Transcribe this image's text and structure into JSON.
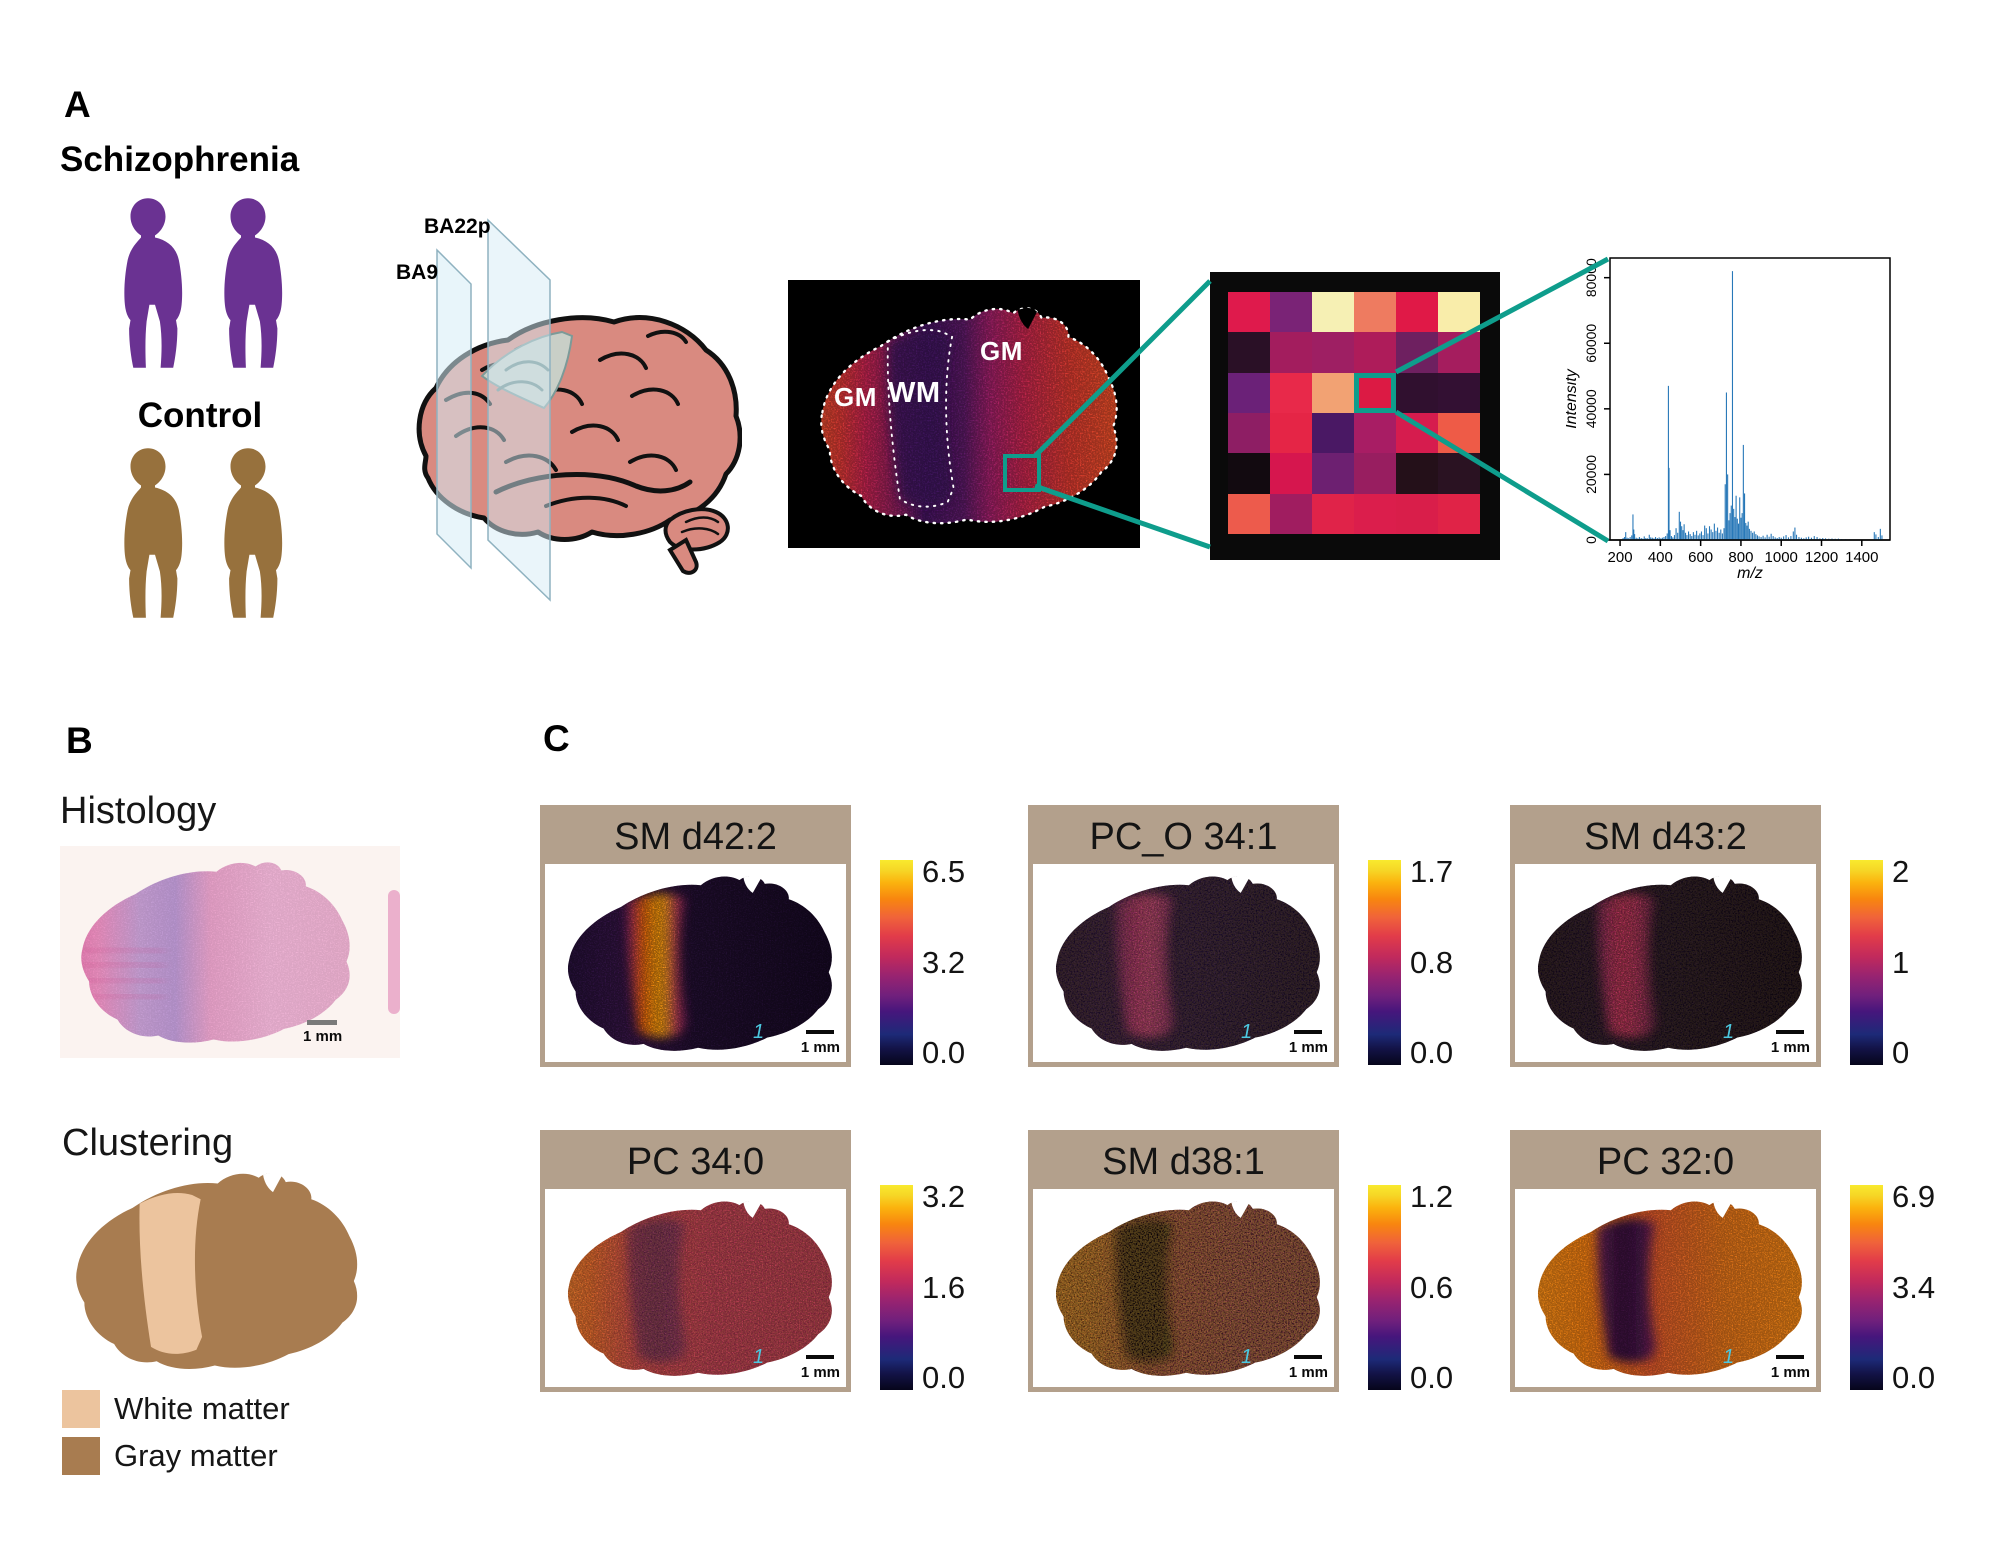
{
  "panel_a": {
    "label": "A",
    "schizophrenia_label": "Schizophrenia",
    "control_label": "Control",
    "schizophrenia_color": "#6a3292",
    "control_color": "#97713d",
    "brain": {
      "plane_far_label": "BA22p",
      "plane_near_label": "BA9",
      "brain_color": "#d98a80",
      "plane_color": "#d6ecf5",
      "cut_region_color": "#c9cfc7"
    },
    "section": {
      "gm_left_label": "GM",
      "wm_label": "WM",
      "gm_right_label": "GM",
      "bg_stops": [
        [
          "0%",
          "#e05a26"
        ],
        [
          "12%",
          "#da3a34"
        ],
        [
          "20%",
          "#c42450"
        ],
        [
          "32%",
          "#7c1e60"
        ],
        [
          "38%",
          "#451560"
        ],
        [
          "50%",
          "#5c1a66"
        ],
        [
          "58%",
          "#a02068"
        ],
        [
          "68%",
          "#c2264e"
        ],
        [
          "82%",
          "#d83a30"
        ],
        [
          "100%",
          "#e85426"
        ]
      ],
      "band_color": "#41135e"
    },
    "heatmap": {
      "rows": 6,
      "cols": 6,
      "highlight": {
        "row": 2,
        "col": 3
      },
      "cells": [
        [
          "#df1a4c",
          "#7a2376",
          "#f6f0b4",
          "#ee7b60",
          "#e01947",
          "#f9edaa"
        ],
        [
          "#2a1026",
          "#a31d5e",
          "#9e1f63",
          "#ae1c5a",
          "#6e2060",
          "#a51d5e"
        ],
        [
          "#6b2178",
          "#e8294a",
          "#f2a273",
          "#dc1a44",
          "#30102f",
          "#331033"
        ],
        [
          "#8e1e64",
          "#e52546",
          "#4a1864",
          "#a81d64",
          "#d61c4e",
          "#ee5b47"
        ],
        [
          "#120a10",
          "#d6164e",
          "#6d2071",
          "#981e60",
          "#241019",
          "#2a1222"
        ],
        [
          "#ed5b4c",
          "#a01d60",
          "#e02349",
          "#db1e4c",
          "#d91e4a",
          "#e02347"
        ]
      ]
    },
    "spectrum": {
      "chart_data": {
        "type": "line",
        "title": "",
        "xlabel": "m/z",
        "ylabel": "Intensity",
        "xlim": [
          150,
          1540
        ],
        "ylim": [
          0,
          86000
        ],
        "xticks": [
          200,
          400,
          600,
          800,
          1000,
          1200,
          1400
        ],
        "yticks": [
          0,
          20000,
          40000,
          60000,
          80000
        ],
        "line_color": "#2878b8",
        "peaks": [
          [
            215,
            600
          ],
          [
            222,
            900
          ],
          [
            228,
            2400
          ],
          [
            235,
            700
          ],
          [
            242,
            500
          ],
          [
            250,
            900
          ],
          [
            258,
            1400
          ],
          [
            264,
            7800
          ],
          [
            268,
            3200
          ],
          [
            272,
            1800
          ],
          [
            280,
            700
          ],
          [
            288,
            500
          ],
          [
            296,
            900
          ],
          [
            305,
            600
          ],
          [
            312,
            400
          ],
          [
            320,
            1100
          ],
          [
            328,
            600
          ],
          [
            336,
            500
          ],
          [
            345,
            1600
          ],
          [
            352,
            800
          ],
          [
            360,
            700
          ],
          [
            368,
            500
          ],
          [
            376,
            900
          ],
          [
            385,
            600
          ],
          [
            394,
            800
          ],
          [
            402,
            500
          ],
          [
            410,
            700
          ],
          [
            418,
            900
          ],
          [
            426,
            1200
          ],
          [
            434,
            2000
          ],
          [
            440,
            47000
          ],
          [
            443,
            22000
          ],
          [
            448,
            3000
          ],
          [
            455,
            1200
          ],
          [
            462,
            800
          ],
          [
            470,
            1500
          ],
          [
            478,
            3600
          ],
          [
            486,
            2200
          ],
          [
            494,
            8600
          ],
          [
            500,
            5600
          ],
          [
            506,
            4200
          ],
          [
            512,
            3000
          ],
          [
            518,
            4800
          ],
          [
            525,
            2200
          ],
          [
            532,
            1500
          ],
          [
            540,
            2600
          ],
          [
            548,
            1800
          ],
          [
            556,
            1200
          ],
          [
            564,
            2400
          ],
          [
            572,
            1600
          ],
          [
            580,
            2800
          ],
          [
            588,
            1400
          ],
          [
            596,
            2000
          ],
          [
            604,
            2600
          ],
          [
            612,
            1500
          ],
          [
            620,
            4400
          ],
          [
            628,
            3600
          ],
          [
            636,
            2000
          ],
          [
            644,
            4200
          ],
          [
            652,
            3200
          ],
          [
            660,
            2400
          ],
          [
            668,
            5000
          ],
          [
            676,
            2800
          ],
          [
            684,
            3800
          ],
          [
            692,
            2200
          ],
          [
            700,
            3200
          ],
          [
            708,
            2000
          ],
          [
            716,
            3600
          ],
          [
            722,
            17000
          ],
          [
            728,
            45000
          ],
          [
            734,
            20000
          ],
          [
            740,
            6000
          ],
          [
            746,
            8200
          ],
          [
            752,
            10500
          ],
          [
            758,
            82000
          ],
          [
            764,
            9500
          ],
          [
            770,
            7000
          ],
          [
            776,
            13500
          ],
          [
            782,
            6500
          ],
          [
            788,
            5000
          ],
          [
            794,
            13000
          ],
          [
            800,
            6800
          ],
          [
            806,
            8200
          ],
          [
            812,
            29000
          ],
          [
            818,
            14200
          ],
          [
            824,
            5200
          ],
          [
            830,
            4400
          ],
          [
            836,
            5600
          ],
          [
            842,
            3400
          ],
          [
            850,
            2800
          ],
          [
            858,
            2200
          ],
          [
            866,
            2600
          ],
          [
            874,
            1800
          ],
          [
            882,
            1400
          ],
          [
            890,
            1100
          ],
          [
            900,
            900
          ],
          [
            910,
            1300
          ],
          [
            920,
            800
          ],
          [
            930,
            1600
          ],
          [
            940,
            1000
          ],
          [
            950,
            1900
          ],
          [
            960,
            1200
          ],
          [
            970,
            800
          ],
          [
            980,
            600
          ],
          [
            990,
            900
          ],
          [
            1000,
            700
          ],
          [
            1012,
            1100
          ],
          [
            1024,
            1500
          ],
          [
            1036,
            800
          ],
          [
            1048,
            1200
          ],
          [
            1060,
            2600
          ],
          [
            1068,
            3800
          ],
          [
            1076,
            1600
          ],
          [
            1088,
            900
          ],
          [
            1100,
            700
          ],
          [
            1112,
            500
          ],
          [
            1124,
            800
          ],
          [
            1136,
            1000
          ],
          [
            1150,
            700
          ],
          [
            1164,
            1200
          ],
          [
            1178,
            900
          ],
          [
            1192,
            500
          ],
          [
            1206,
            600
          ],
          [
            1220,
            500
          ],
          [
            1236,
            400
          ],
          [
            1252,
            450
          ],
          [
            1268,
            380
          ],
          [
            1284,
            420
          ],
          [
            1300,
            300
          ],
          [
            1320,
            260
          ],
          [
            1340,
            220
          ],
          [
            1360,
            180
          ],
          [
            1380,
            150
          ],
          [
            1400,
            130
          ],
          [
            1462,
            2400
          ],
          [
            1470,
            1700
          ],
          [
            1482,
            900
          ],
          [
            1492,
            3400
          ],
          [
            1500,
            1400
          ]
        ]
      }
    }
  },
  "panel_b": {
    "label": "B",
    "histology": {
      "title": "Histology",
      "scale_label": "1 mm",
      "bg_stops": [
        [
          "0%",
          "#e773ae"
        ],
        [
          "12%",
          "#ec8fc0"
        ],
        [
          "26%",
          "#c79fd4"
        ],
        [
          "38%",
          "#bb97d2"
        ],
        [
          "50%",
          "#e9a2ca"
        ],
        [
          "70%",
          "#efb4d6"
        ],
        [
          "100%",
          "#ecb0d0"
        ]
      ]
    },
    "clustering": {
      "title": "Clustering",
      "white_matter_color": "#ecc49e",
      "gray_matter_color": "#a87c50"
    },
    "legend": [
      {
        "label": "White matter",
        "color": "#ecc49e"
      },
      {
        "label": "Gray matter",
        "color": "#a87c50"
      }
    ]
  },
  "panel_c": {
    "label": "C",
    "scale_bar_label": "1 mm",
    "registration_mark": "1",
    "colormap_stops": [
      [
        "0%",
        "#06051a"
      ],
      [
        "8%",
        "#131347"
      ],
      [
        "15%",
        "#1d2a78"
      ],
      [
        "26%",
        "#46167c"
      ],
      [
        "34%",
        "#71207c"
      ],
      [
        "43%",
        "#962371"
      ],
      [
        "53%",
        "#c22a5c"
      ],
      [
        "63%",
        "#e23c49"
      ],
      [
        "72%",
        "#f0633a"
      ],
      [
        "81%",
        "#f8860f"
      ],
      [
        "89%",
        "#fbb30e"
      ],
      [
        "95%",
        "#f6d626"
      ],
      [
        "100%",
        "#f9ea2e"
      ]
    ],
    "panels": [
      {
        "title": "SM d42:2",
        "ticks": [
          "6.5",
          "3.2",
          "0.0"
        ],
        "bg": [
          [
            "0%",
            "#221038"
          ],
          [
            "18%",
            "#321445"
          ],
          [
            "30%",
            "#3a1648"
          ],
          [
            "50%",
            "#241034"
          ],
          [
            "100%",
            "#180a26"
          ]
        ],
        "band": [
          [
            "0%",
            "#9c2370"
          ],
          [
            "22%",
            "#e8560f"
          ],
          [
            "45%",
            "#f9930c"
          ],
          [
            "62%",
            "#f9a30c"
          ],
          [
            "82%",
            "#c23a54"
          ],
          [
            "100%",
            "#7c2068"
          ]
        ],
        "band_opacity": 1,
        "dark_speckle": 0.38,
        "bright_speckle": 0
      },
      {
        "title": "PC_O 34:1",
        "ticks": [
          "1.7",
          "0.8",
          "0.0"
        ],
        "bg": [
          [
            "0%",
            "#200e32"
          ],
          [
            "30%",
            "#2a1240"
          ],
          [
            "60%",
            "#22103a"
          ],
          [
            "100%",
            "#1a0c2c"
          ]
        ],
        "band": [
          [
            "0%",
            "#6e2160"
          ],
          [
            "35%",
            "#aa2e6e"
          ],
          [
            "60%",
            "#b03a72"
          ],
          [
            "100%",
            "#7c2364"
          ]
        ],
        "band_opacity": 0.95,
        "dark_speckle": 0.4,
        "bright_speckle": 0.12
      },
      {
        "title": "SM d43:2",
        "ticks": [
          "2",
          "1",
          "0"
        ],
        "bg": [
          [
            "0%",
            "#170a22"
          ],
          [
            "30%",
            "#1e0d2e"
          ],
          [
            "60%",
            "#180b24"
          ],
          [
            "100%",
            "#10061a"
          ]
        ],
        "band": [
          [
            "0%",
            "#7c2060"
          ],
          [
            "35%",
            "#c22a60"
          ],
          [
            "65%",
            "#b42a62"
          ],
          [
            "100%",
            "#5e1a4e"
          ]
        ],
        "band_opacity": 0.95,
        "dark_speckle": 0.45,
        "bright_speckle": 0.1
      },
      {
        "title": "PC 34:0",
        "ticks": [
          "3.2",
          "1.6",
          "0.0"
        ],
        "bg": [
          [
            "0%",
            "#e2762a"
          ],
          [
            "14%",
            "#dd5f2c"
          ],
          [
            "30%",
            "#c23e4c"
          ],
          [
            "55%",
            "#b23254"
          ],
          [
            "100%",
            "#aa3050"
          ]
        ],
        "band": [
          [
            "0%",
            "#6e2458"
          ],
          [
            "50%",
            "#5a2055"
          ],
          [
            "100%",
            "#702660"
          ]
        ],
        "band_opacity": 0.8,
        "dark_speckle": 0.35,
        "bright_speckle": 0.12
      },
      {
        "title": "SM d38:1",
        "ticks": [
          "1.2",
          "0.6",
          "0.0"
        ],
        "bg": [
          [
            "0%",
            "#b06020"
          ],
          [
            "20%",
            "#a35426"
          ],
          [
            "40%",
            "#84303e"
          ],
          [
            "70%",
            "#762846"
          ],
          [
            "100%",
            "#6c2442"
          ]
        ],
        "band": [
          [
            "0%",
            "#0c050e"
          ],
          [
            "50%",
            "#0a040c"
          ],
          [
            "100%",
            "#140810"
          ]
        ],
        "band_opacity": 0.97,
        "dark_speckle": 0.55,
        "bright_speckle": 0.3
      },
      {
        "title": "PC 32:0",
        "ticks": [
          "6.9",
          "3.4",
          "0.0"
        ],
        "bg": [
          [
            "0%",
            "#f08d18"
          ],
          [
            "22%",
            "#ec7c12"
          ],
          [
            "45%",
            "#d8572a"
          ],
          [
            "70%",
            "#e0731a"
          ],
          [
            "100%",
            "#ec8414"
          ]
        ],
        "band": [
          [
            "0%",
            "#5c1a58"
          ],
          [
            "40%",
            "#2c0e3c"
          ],
          [
            "70%",
            "#3a1248"
          ],
          [
            "100%",
            "#6e2058"
          ]
        ],
        "band_opacity": 0.95,
        "dark_speckle": 0.3,
        "bright_speckle": 0
      }
    ]
  },
  "colors": {
    "teal": "#0e9d8c",
    "tan": "#b3a08c",
    "spectrum_blue": "#2878b8"
  }
}
